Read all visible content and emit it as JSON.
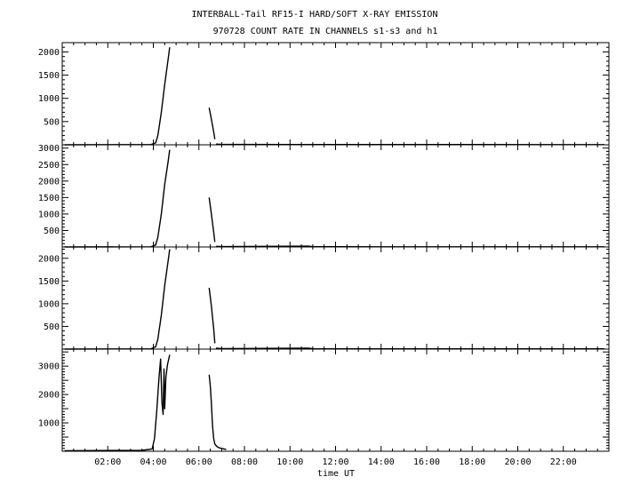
{
  "title_line1": "INTERBALL-Tail RF15-I HARD/SOFT X-RAY EMISSION",
  "title_line2": "970728  COUNT RATE IN CHANNELS s1-s3 and h1",
  "chart_data": {
    "type": "line",
    "title": "INTERBALL-Tail RF15-I HARD/SOFT X-RAY EMISSION",
    "subtitle": "970728  COUNT RATE IN CHANNELS s1-s3 and h1",
    "xlabel": "time UT",
    "xlim": [
      0,
      24
    ],
    "x_ticks": [
      "02:00",
      "04:00",
      "06:00",
      "08:00",
      "10:00",
      "12:00",
      "14:00",
      "16:00",
      "18:00",
      "20:00",
      "22:00"
    ],
    "x_tick_hours": [
      2,
      4,
      6,
      8,
      10,
      12,
      14,
      16,
      18,
      20,
      22
    ],
    "grid": false,
    "panels": [
      {
        "channel": "s1",
        "ylim": [
          0,
          2200
        ],
        "yticks": [
          500,
          1000,
          1500,
          2000
        ],
        "ytick_labels": [
          "500",
          "1000",
          "1500",
          "2000"
        ],
        "segments": [
          [
            [
              0.1,
              0
            ],
            [
              3.9,
              5
            ],
            [
              4.1,
              40
            ],
            [
              4.2,
              200
            ],
            [
              4.35,
              700
            ],
            [
              4.5,
              1300
            ],
            [
              4.65,
              1850
            ],
            [
              4.72,
              2100
            ]
          ],
          [
            [
              6.45,
              800
            ],
            [
              6.55,
              550
            ],
            [
              6.65,
              280
            ],
            [
              6.7,
              120
            ]
          ],
          [
            [
              6.75,
              15
            ],
            [
              7.0,
              8
            ],
            [
              10.5,
              5
            ],
            [
              14.0,
              6
            ],
            [
              18.0,
              5
            ],
            [
              23.8,
              4
            ]
          ]
        ]
      },
      {
        "channel": "s2",
        "ylim": [
          0,
          3100
        ],
        "yticks": [
          500,
          1000,
          1500,
          2000,
          2500,
          3000
        ],
        "ytick_labels": [
          "500",
          "1000",
          "1500",
          "2000",
          "2500",
          "3000"
        ],
        "segments": [
          [
            [
              0.1,
              0
            ],
            [
              3.9,
              5
            ],
            [
              4.1,
              60
            ],
            [
              4.2,
              300
            ],
            [
              4.35,
              1000
            ],
            [
              4.5,
              1900
            ],
            [
              4.65,
              2600
            ],
            [
              4.72,
              2950
            ]
          ],
          [
            [
              6.45,
              1500
            ],
            [
              6.55,
              1000
            ],
            [
              6.65,
              450
            ],
            [
              6.7,
              150
            ]
          ],
          [
            [
              6.75,
              20
            ],
            [
              7.0,
              10
            ],
            [
              10.8,
              25
            ],
            [
              11.0,
              8
            ],
            [
              14.0,
              6
            ],
            [
              18.0,
              5
            ],
            [
              23.8,
              6
            ]
          ]
        ]
      },
      {
        "channel": "s3",
        "ylim": [
          0,
          2250
        ],
        "yticks": [
          500,
          1000,
          1500,
          2000
        ],
        "ytick_labels": [
          "500",
          "1000",
          "1500",
          "2000"
        ],
        "segments": [
          [
            [
              0.1,
              0
            ],
            [
              3.9,
              5
            ],
            [
              4.1,
              50
            ],
            [
              4.2,
              220
            ],
            [
              4.35,
              750
            ],
            [
              4.5,
              1400
            ],
            [
              4.65,
              1950
            ],
            [
              4.72,
              2200
            ]
          ],
          [
            [
              6.45,
              1350
            ],
            [
              6.55,
              950
            ],
            [
              6.65,
              450
            ],
            [
              6.7,
              130
            ]
          ],
          [
            [
              6.75,
              20
            ],
            [
              7.0,
              10
            ],
            [
              10.8,
              20
            ],
            [
              11.0,
              8
            ],
            [
              14.0,
              6
            ],
            [
              18.0,
              5
            ],
            [
              23.8,
              5
            ]
          ]
        ]
      },
      {
        "channel": "h1",
        "ylim": [
          0,
          3600
        ],
        "yticks": [
          1000,
          2000,
          3000
        ],
        "ytick_labels": [
          "1000",
          "2000",
          "3000"
        ],
        "segments": [
          [
            [
              0.1,
              20
            ],
            [
              1.5,
              25
            ],
            [
              3.5,
              30
            ],
            [
              3.95,
              80
            ],
            [
              4.05,
              450
            ],
            [
              4.15,
              1400
            ],
            [
              4.25,
              2600
            ],
            [
              4.32,
              3250
            ],
            [
              4.38,
              1700
            ],
            [
              4.43,
              1300
            ],
            [
              4.47,
              2900
            ],
            [
              4.5,
              1500
            ],
            [
              4.55,
              2600
            ],
            [
              4.62,
              3050
            ],
            [
              4.72,
              3400
            ]
          ],
          [
            [
              6.45,
              2700
            ],
            [
              6.5,
              2300
            ],
            [
              6.55,
              1700
            ],
            [
              6.6,
              900
            ],
            [
              6.65,
              450
            ],
            [
              6.7,
              250
            ],
            [
              6.8,
              160
            ],
            [
              6.9,
              120
            ],
            [
              7.0,
              100
            ],
            [
              7.1,
              80
            ],
            [
              7.2,
              60
            ]
          ]
        ]
      }
    ]
  }
}
